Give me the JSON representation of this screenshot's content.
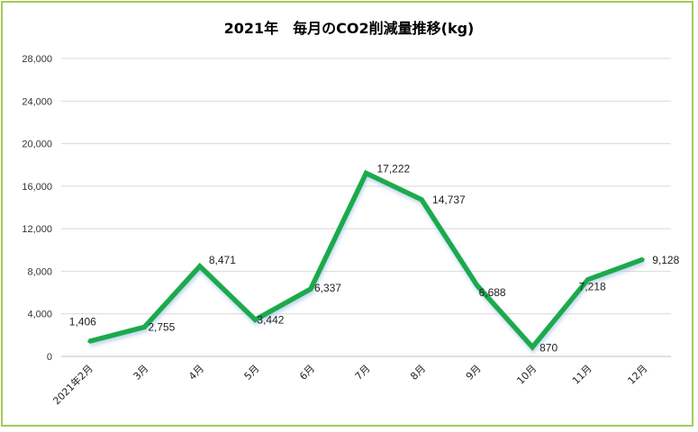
{
  "chart_data": {
    "type": "line",
    "title": "2021年　毎月のCO2削減量推移(kg)",
    "categories": [
      "2021年2月",
      "3月",
      "4月",
      "5月",
      "6月",
      "7月",
      "8月",
      "9月",
      "10月",
      "11月",
      "12月"
    ],
    "series": [
      {
        "values": [
          1406,
          2755,
          8471,
          3442,
          6337,
          17222,
          14737,
          6688,
          870,
          7218,
          9128
        ],
        "labels": [
          "1,406",
          "2,755",
          "8,471",
          "3,442",
          "6,337",
          "17,222",
          "14,737",
          "6,688",
          "870",
          "7,218",
          "9,128"
        ],
        "color": "#1faa4b"
      }
    ],
    "yticks": [
      "0",
      "4,000",
      "8,000",
      "12,000",
      "16,000",
      "20,000",
      "24,000",
      "28,000"
    ],
    "ylim": [
      0,
      28000
    ],
    "grid": true,
    "legend": "none",
    "border_color": "#a6c95a"
  }
}
